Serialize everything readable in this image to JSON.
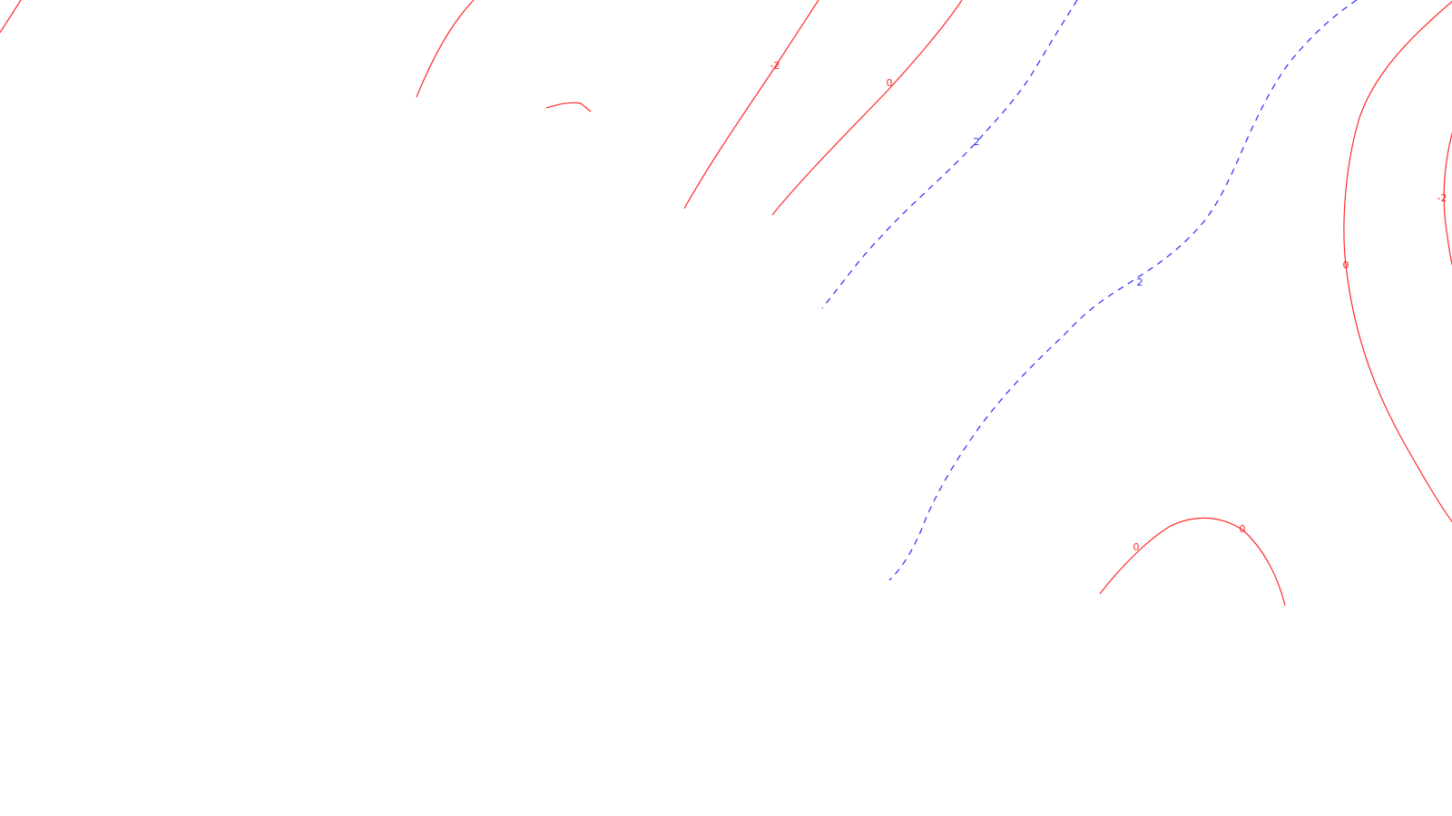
{
  "contour_map": {
    "line_colors": {
      "negative_zero": "#ff2a2a",
      "positive": "#2a2aff"
    },
    "line_styles": {
      "negative_zero": "solid",
      "positive": "dashed"
    },
    "labels": [
      {
        "id": "l1",
        "text": "-2",
        "level": -2
      },
      {
        "id": "l2",
        "text": "0",
        "level": 0
      },
      {
        "id": "l3",
        "text": "2",
        "level": 2
      },
      {
        "id": "l4",
        "text": "2",
        "level": 2
      },
      {
        "id": "l5",
        "text": "-2",
        "level": -2
      },
      {
        "id": "l6",
        "text": "0",
        "level": 0
      },
      {
        "id": "l7",
        "text": "0",
        "level": 0
      },
      {
        "id": "l8",
        "text": "0",
        "level": 0
      }
    ]
  }
}
